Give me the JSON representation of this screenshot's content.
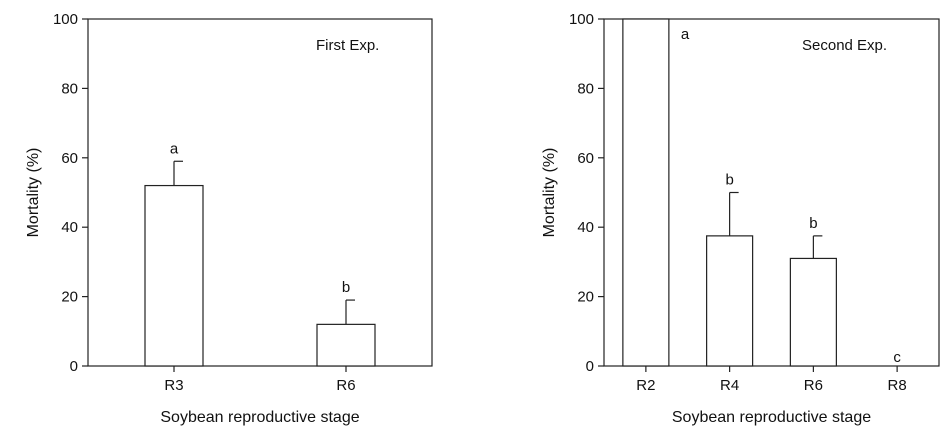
{
  "chart_data": [
    {
      "type": "bar",
      "annotation": "First Exp.",
      "xlabel": "Soybean reproductive stage",
      "ylabel": "Mortality (%)",
      "ylim": [
        0,
        100
      ],
      "yticks": [
        0,
        20,
        40,
        60,
        80,
        100
      ],
      "categories": [
        "R3",
        "R6"
      ],
      "values": [
        52,
        12
      ],
      "errors": [
        7,
        7
      ],
      "letters": [
        "a",
        "b"
      ],
      "grid": false,
      "bar_color": "#ffffff"
    },
    {
      "type": "bar",
      "annotation": "Second Exp.",
      "xlabel": "Soybean reproductive stage",
      "ylabel": "Mortality (%)",
      "ylim": [
        0,
        100
      ],
      "yticks": [
        0,
        20,
        40,
        60,
        80,
        100
      ],
      "categories": [
        "R2",
        "R4",
        "R6",
        "R8"
      ],
      "values": [
        100,
        37.5,
        31,
        0
      ],
      "errors": [
        0,
        12.5,
        6.5,
        0
      ],
      "letters": [
        "a",
        "b",
        "b",
        "c"
      ],
      "grid": false,
      "bar_color": "#ffffff"
    }
  ]
}
